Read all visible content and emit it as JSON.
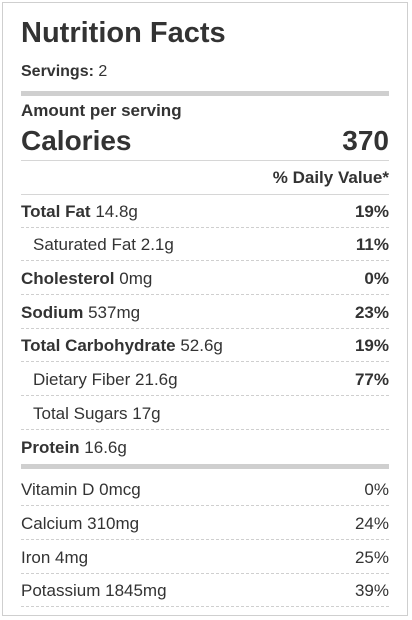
{
  "title": "Nutrition Facts",
  "servings": {
    "label": "Servings:",
    "value": "2"
  },
  "amount_label": "Amount per serving",
  "calories": {
    "label": "Calories",
    "value": "370"
  },
  "daily_value_header": "% Daily Value*",
  "nutrients": [
    {
      "name": "Total Fat",
      "amount": "14.8g",
      "dv": "19%"
    },
    {
      "name": "Saturated Fat",
      "amount": "2.1g",
      "dv": "11%"
    },
    {
      "name": "Cholesterol",
      "amount": "0mg",
      "dv": "0%"
    },
    {
      "name": "Sodium",
      "amount": "537mg",
      "dv": "23%"
    },
    {
      "name": "Total Carbohydrate",
      "amount": "52.6g",
      "dv": "19%"
    },
    {
      "name": "Dietary Fiber",
      "amount": "21.6g",
      "dv": "77%"
    },
    {
      "name": "Total Sugars",
      "amount": "17g",
      "dv": ""
    },
    {
      "name": "Protein",
      "amount": "16.6g",
      "dv": ""
    }
  ],
  "vitamins": [
    {
      "name": "Vitamin D",
      "amount": "0mcg",
      "dv": "0%"
    },
    {
      "name": "Calcium",
      "amount": "310mg",
      "dv": "24%"
    },
    {
      "name": "Iron",
      "amount": "4mg",
      "dv": "25%"
    },
    {
      "name": "Potassium",
      "amount": "1845mg",
      "dv": "39%"
    }
  ]
}
